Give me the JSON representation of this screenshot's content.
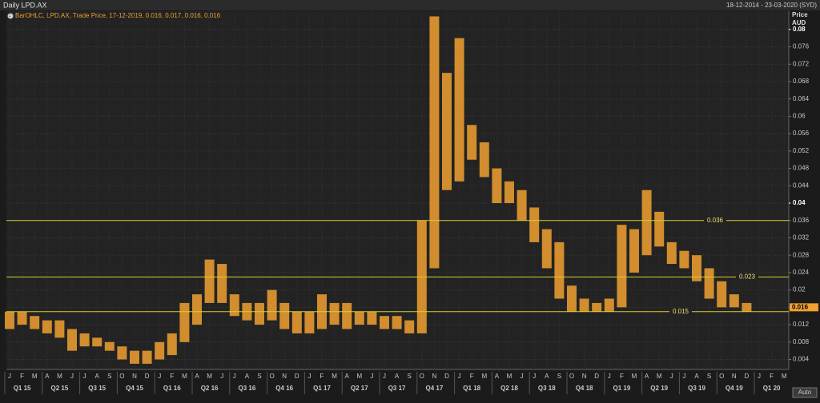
{
  "chart_data": {
    "type": "ohlc-range",
    "title": "Daily LPD.AX",
    "date_range": "18-12-2014 - 23-03-2020 (SYD)",
    "legend": "BarOHLC, LPD.AX, Trade Price, 17-12-2019, 0.016, 0.017, 0.016, 0.016",
    "y_label": "Price AUD",
    "auto_button": "Auto",
    "color": "#f0a030",
    "categories": [
      "J",
      "F",
      "M",
      "A",
      "M",
      "J",
      "J",
      "A",
      "S",
      "O",
      "N",
      "D",
      "J",
      "F",
      "M",
      "A",
      "M",
      "J",
      "J",
      "A",
      "S",
      "O",
      "N",
      "D",
      "J",
      "F",
      "M",
      "A",
      "M",
      "J",
      "J",
      "A",
      "S",
      "O",
      "N",
      "D",
      "J",
      "F",
      "M",
      "A",
      "M",
      "J",
      "J",
      "A",
      "S",
      "O",
      "N",
      "D",
      "J",
      "F",
      "M",
      "A",
      "M",
      "J",
      "J",
      "A",
      "S",
      "O",
      "N",
      "D",
      "J",
      "F",
      "M"
    ],
    "quarters": [
      "Q1 15",
      "Q2 15",
      "Q3 15",
      "Q4 15",
      "Q1 16",
      "Q2 16",
      "Q3 16",
      "Q4 16",
      "Q1 17",
      "Q2 17",
      "Q3 17",
      "Q4 17",
      "Q1 18",
      "Q2 18",
      "Q3 18",
      "Q4 18",
      "Q1 19",
      "Q2 19",
      "Q3 19",
      "Q4 19",
      "Q1 20"
    ],
    "series": [
      {
        "name": "Low",
        "values": [
          0.011,
          0.012,
          0.011,
          0.01,
          0.009,
          0.006,
          0.007,
          0.007,
          0.006,
          0.004,
          0.003,
          0.003,
          0.004,
          0.005,
          0.008,
          0.012,
          0.017,
          0.017,
          0.014,
          0.013,
          0.012,
          0.013,
          0.011,
          0.01,
          0.01,
          0.011,
          0.012,
          0.011,
          0.012,
          0.012,
          0.011,
          0.011,
          0.01,
          0.01,
          0.025,
          0.043,
          0.045,
          0.05,
          0.046,
          0.04,
          0.04,
          0.036,
          0.031,
          0.025,
          0.018,
          0.015,
          0.015,
          0.015,
          0.015,
          0.016,
          0.024,
          0.028,
          0.03,
          0.026,
          0.025,
          0.022,
          0.018,
          0.016,
          0.016,
          0.015,
          null,
          null,
          null
        ]
      },
      {
        "name": "High",
        "values": [
          0.015,
          0.015,
          0.014,
          0.013,
          0.013,
          0.011,
          0.01,
          0.009,
          0.008,
          0.007,
          0.006,
          0.006,
          0.008,
          0.01,
          0.017,
          0.019,
          0.027,
          0.026,
          0.019,
          0.017,
          0.017,
          0.02,
          0.017,
          0.015,
          0.015,
          0.019,
          0.017,
          0.017,
          0.015,
          0.015,
          0.014,
          0.014,
          0.013,
          0.036,
          0.083,
          0.07,
          0.078,
          0.058,
          0.054,
          0.048,
          0.045,
          0.043,
          0.039,
          0.034,
          0.031,
          0.021,
          0.018,
          0.017,
          0.018,
          0.035,
          0.034,
          0.043,
          0.038,
          0.031,
          0.029,
          0.028,
          0.025,
          0.022,
          0.019,
          0.017,
          null,
          null,
          null
        ]
      }
    ],
    "hlines": [
      0.036,
      0.023,
      0.015
    ],
    "last_price": 0.016,
    "ylim": [
      0.0017,
      0.0842
    ],
    "yticks": [
      0.004,
      0.008,
      0.012,
      0.016,
      0.02,
      0.024,
      0.028,
      0.032,
      0.036,
      0.04,
      0.044,
      0.048,
      0.052,
      0.056,
      0.06,
      0.064,
      0.068,
      0.072,
      0.076,
      0.08
    ],
    "bold_yticks": [
      0.04,
      0.08
    ],
    "grid": true
  }
}
